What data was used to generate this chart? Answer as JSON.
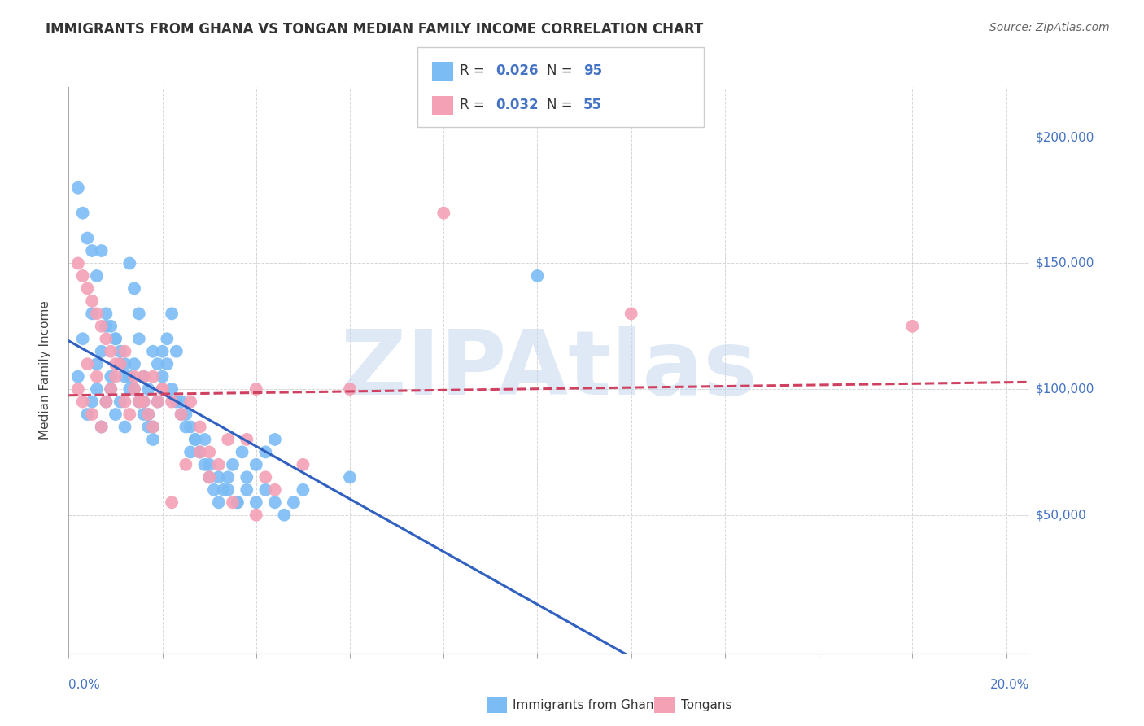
{
  "title": "IMMIGRANTS FROM GHANA VS TONGAN MEDIAN FAMILY INCOME CORRELATION CHART",
  "source": "Source: ZipAtlas.com",
  "ylabel": "Median Family Income",
  "xlim": [
    0.0,
    0.205
  ],
  "ylim": [
    -5000,
    220000
  ],
  "yticks": [
    0,
    50000,
    100000,
    150000,
    200000
  ],
  "ytick_labels": [
    "",
    "$50,000",
    "$100,000",
    "$150,000",
    "$200,000"
  ],
  "ghana_color": "#7BBCF5",
  "tonga_color": "#F4A0B5",
  "ghana_line_color": "#3060C0",
  "tonga_line_color": "#D04060",
  "watermark": "ZIPAtlas",
  "watermark_color": "#C5D8F0",
  "ghana_R": "0.026",
  "ghana_N": "95",
  "tonga_R": "0.032",
  "tonga_N": "55",
  "ghana_x": [
    0.002,
    0.003,
    0.004,
    0.005,
    0.005,
    0.006,
    0.006,
    0.007,
    0.007,
    0.008,
    0.008,
    0.009,
    0.009,
    0.01,
    0.01,
    0.011,
    0.011,
    0.012,
    0.012,
    0.013,
    0.013,
    0.014,
    0.014,
    0.015,
    0.015,
    0.016,
    0.016,
    0.017,
    0.017,
    0.018,
    0.018,
    0.019,
    0.02,
    0.021,
    0.022,
    0.023,
    0.024,
    0.025,
    0.026,
    0.027,
    0.028,
    0.029,
    0.03,
    0.032,
    0.034,
    0.036,
    0.038,
    0.04,
    0.042,
    0.044,
    0.002,
    0.003,
    0.004,
    0.005,
    0.006,
    0.007,
    0.008,
    0.009,
    0.01,
    0.011,
    0.012,
    0.013,
    0.014,
    0.015,
    0.016,
    0.017,
    0.018,
    0.019,
    0.02,
    0.021,
    0.022,
    0.023,
    0.024,
    0.025,
    0.026,
    0.027,
    0.028,
    0.029,
    0.03,
    0.031,
    0.032,
    0.033,
    0.034,
    0.035,
    0.036,
    0.037,
    0.038,
    0.04,
    0.042,
    0.044,
    0.046,
    0.048,
    0.05,
    0.06,
    0.1
  ],
  "ghana_y": [
    105000,
    120000,
    90000,
    130000,
    95000,
    110000,
    100000,
    85000,
    115000,
    125000,
    95000,
    105000,
    100000,
    90000,
    120000,
    110000,
    95000,
    85000,
    105000,
    100000,
    150000,
    140000,
    110000,
    120000,
    130000,
    95000,
    105000,
    100000,
    90000,
    115000,
    85000,
    95000,
    105000,
    110000,
    100000,
    95000,
    90000,
    85000,
    75000,
    80000,
    75000,
    80000,
    70000,
    65000,
    60000,
    55000,
    65000,
    70000,
    75000,
    80000,
    180000,
    170000,
    160000,
    155000,
    145000,
    155000,
    130000,
    125000,
    120000,
    115000,
    110000,
    105000,
    100000,
    95000,
    90000,
    85000,
    80000,
    110000,
    115000,
    120000,
    130000,
    115000,
    95000,
    90000,
    85000,
    80000,
    75000,
    70000,
    65000,
    60000,
    55000,
    60000,
    65000,
    70000,
    55000,
    75000,
    60000,
    55000,
    60000,
    55000,
    50000,
    55000,
    60000,
    65000,
    145000
  ],
  "tonga_x": [
    0.002,
    0.003,
    0.004,
    0.005,
    0.006,
    0.007,
    0.008,
    0.009,
    0.01,
    0.011,
    0.012,
    0.013,
    0.014,
    0.015,
    0.016,
    0.017,
    0.018,
    0.019,
    0.02,
    0.022,
    0.024,
    0.026,
    0.028,
    0.03,
    0.032,
    0.034,
    0.038,
    0.04,
    0.042,
    0.044,
    0.002,
    0.003,
    0.004,
    0.005,
    0.006,
    0.007,
    0.008,
    0.009,
    0.01,
    0.012,
    0.014,
    0.016,
    0.018,
    0.02,
    0.022,
    0.025,
    0.028,
    0.03,
    0.035,
    0.04,
    0.05,
    0.06,
    0.08,
    0.12,
    0.18
  ],
  "tonga_y": [
    100000,
    95000,
    110000,
    90000,
    105000,
    85000,
    95000,
    100000,
    105000,
    110000,
    95000,
    90000,
    100000,
    95000,
    105000,
    90000,
    85000,
    95000,
    100000,
    95000,
    90000,
    95000,
    85000,
    75000,
    70000,
    80000,
    80000,
    100000,
    65000,
    60000,
    150000,
    145000,
    140000,
    135000,
    130000,
    125000,
    120000,
    115000,
    110000,
    115000,
    105000,
    95000,
    105000,
    100000,
    55000,
    70000,
    75000,
    65000,
    55000,
    50000,
    70000,
    100000,
    170000,
    130000,
    125000
  ]
}
